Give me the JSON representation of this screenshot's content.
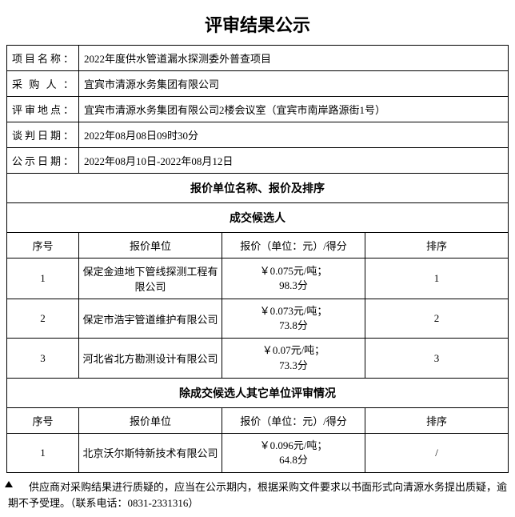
{
  "title": "评审结果公示",
  "info": {
    "project_label": "项目名称：",
    "project_value": "2022年度供水管道漏水探测委外普查项目",
    "purchaser_label": "采购人：",
    "purchaser_value": "宜宾市清源水务集团有限公司",
    "location_label": "评审地点：",
    "location_value": "宜宾市清源水务集团有限公司2楼会议室（宜宾市南岸路源街1号）",
    "negotiate_label": "谈判日期：",
    "negotiate_value": "2022年08月08日09时30分",
    "notice_label": "公示日期：",
    "notice_value": "2022年08月10日-2022年08月12日"
  },
  "section": {
    "main_header": "报价单位名称、报价及排序",
    "candidates_header": "成交候选人",
    "others_header": "除成交候选人其它单位评审情况"
  },
  "cols": {
    "seq": "序号",
    "unit": "报价单位",
    "price": "报价（单位：元）/得分",
    "rank": "排序"
  },
  "candidates": [
    {
      "seq": "1",
      "unit": "保定金迪地下管线探测工程有限公司",
      "price_l1": "￥0.075元/吨；",
      "price_l2": "98.3分",
      "rank": "1"
    },
    {
      "seq": "2",
      "unit": "保定市浩宇管道维护有限公司",
      "price_l1": "￥0.073元/吨；",
      "price_l2": "73.8分",
      "rank": "2"
    },
    {
      "seq": "3",
      "unit": "河北省北方勘测设计有限公司",
      "price_l1": "￥0.07元/吨；",
      "price_l2": "73.3分",
      "rank": "3"
    }
  ],
  "others": [
    {
      "seq": "1",
      "unit": "北京沃尔斯特新技术有限公司",
      "price_l1": "￥0.096元/吨；",
      "price_l2": "64.8分",
      "rank": "/"
    }
  ],
  "footnote": "供应商对采购结果进行质疑的，应当在公示期内，根据采购文件要求以书面形式向清源水务提出质疑，逾期不予受理。（联系电话：0831-2331316）"
}
